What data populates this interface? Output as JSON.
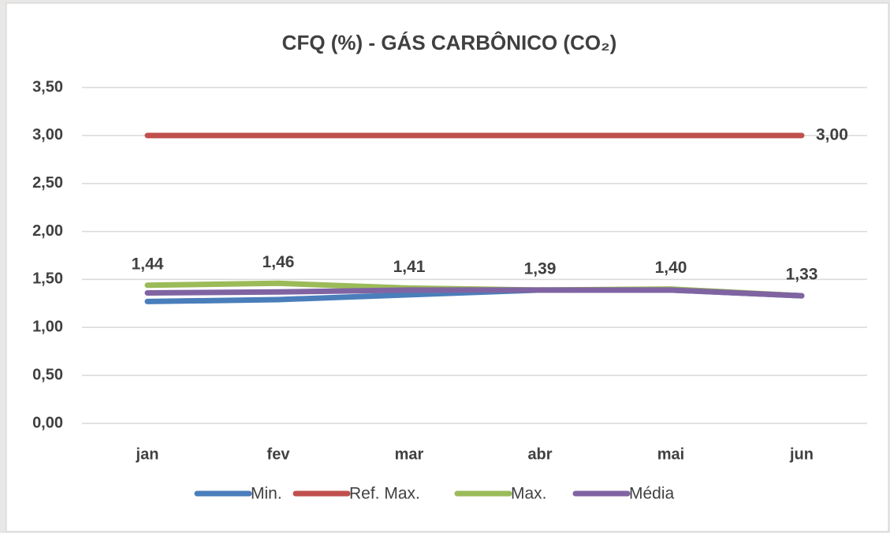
{
  "chart_data": {
    "type": "line",
    "title": "CFQ (%) - GÁS CARBÔNICO (CO₂)",
    "categories": [
      "jan",
      "fev",
      "mar",
      "abr",
      "mai",
      "jun"
    ],
    "series": [
      {
        "name": "Min.",
        "color": "#4a7ebb",
        "values": [
          1.27,
          1.29,
          1.34,
          1.39,
          1.39,
          1.33
        ]
      },
      {
        "name": "Ref. Max.",
        "color": "#c0504d",
        "values": [
          3.0,
          3.0,
          3.0,
          3.0,
          3.0,
          3.0
        ],
        "value_labels": [
          null,
          null,
          null,
          null,
          null,
          "3,00"
        ],
        "label_color": "#ff0000"
      },
      {
        "name": "Max.",
        "color": "#9bbb59",
        "values": [
          1.44,
          1.46,
          1.41,
          1.39,
          1.4,
          1.33
        ],
        "value_labels": [
          "1,44",
          "1,46",
          "1,41",
          "1,39",
          "1,40",
          "1,33"
        ],
        "label_color": "#404040"
      },
      {
        "name": "Média",
        "color": "#8064a2",
        "values": [
          1.36,
          1.37,
          1.39,
          1.39,
          1.39,
          1.33
        ]
      }
    ],
    "ylim": [
      0,
      3.5
    ],
    "yticks": [
      {
        "value": 0,
        "label": "0,00"
      },
      {
        "value": 0.5,
        "label": "0,50"
      },
      {
        "value": 1,
        "label": "1,00"
      },
      {
        "value": 1.5,
        "label": "1,50"
      },
      {
        "value": 2,
        "label": "2,00"
      },
      {
        "value": 2.5,
        "label": "2,50"
      },
      {
        "value": 3,
        "label": "3,00"
      },
      {
        "value": 3.5,
        "label": "3,50"
      }
    ],
    "grid": true,
    "legend": "bottom"
  }
}
